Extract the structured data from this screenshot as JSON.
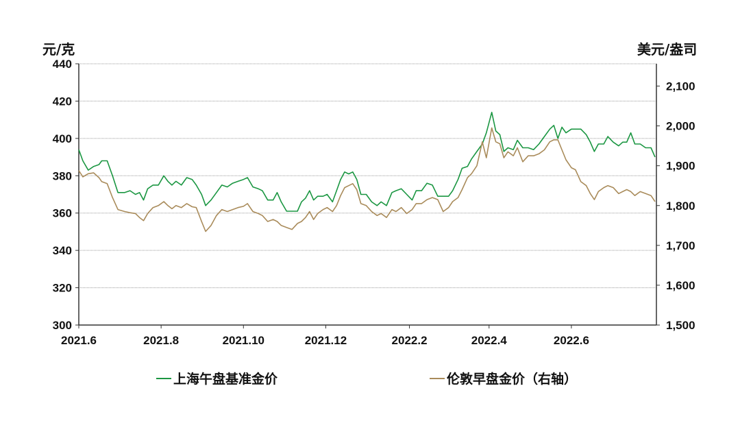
{
  "chart_data": {
    "type": "line",
    "title": "",
    "left_axis": {
      "label": "元/克",
      "ticks": [
        300,
        320,
        340,
        360,
        380,
        400,
        420,
        440
      ],
      "ylim": [
        300,
        440
      ]
    },
    "right_axis": {
      "label": "美元/盎司",
      "ticks": [
        "1,500",
        "1,600",
        "1,700",
        "1,800",
        "1,900",
        "2,000",
        "2,100"
      ],
      "tick_values": [
        1500,
        1600,
        1700,
        1800,
        1900,
        2000,
        2100
      ],
      "ylim": [
        1500,
        2156
      ]
    },
    "x_axis": {
      "tick_labels": [
        "2021.6",
        "2021.8",
        "2021.10",
        "2021.12",
        "2022.2",
        "2022.4",
        "2022.6"
      ],
      "range": [
        "2021.6",
        "2022.7"
      ]
    },
    "grid": true,
    "legend_position": "bottom",
    "series": [
      {
        "name": "上海午盘基准金价",
        "axis": "left",
        "color": "#1a9641",
        "points": [
          [
            "2021-06-01",
            394
          ],
          [
            "2021-06-04",
            388
          ],
          [
            "2021-06-08",
            383
          ],
          [
            "2021-06-12",
            385
          ],
          [
            "2021-06-16",
            386
          ],
          [
            "2021-06-18",
            388
          ],
          [
            "2021-06-22",
            388
          ],
          [
            "2021-06-26",
            380
          ],
          [
            "2021-06-30",
            371
          ],
          [
            "2021-07-05",
            371
          ],
          [
            "2021-07-09",
            372
          ],
          [
            "2021-07-13",
            370
          ],
          [
            "2021-07-16",
            371
          ],
          [
            "2021-07-19",
            367
          ],
          [
            "2021-07-22",
            373
          ],
          [
            "2021-07-26",
            375
          ],
          [
            "2021-07-30",
            375
          ],
          [
            "2021-08-03",
            380
          ],
          [
            "2021-08-06",
            377
          ],
          [
            "2021-08-09",
            375
          ],
          [
            "2021-08-12",
            377
          ],
          [
            "2021-08-16",
            375
          ],
          [
            "2021-08-20",
            379
          ],
          [
            "2021-08-24",
            378
          ],
          [
            "2021-08-27",
            375
          ],
          [
            "2021-08-31",
            370
          ],
          [
            "2021-09-03",
            364
          ],
          [
            "2021-09-07",
            367
          ],
          [
            "2021-09-11",
            371
          ],
          [
            "2021-09-15",
            375
          ],
          [
            "2021-09-19",
            374
          ],
          [
            "2021-09-23",
            376
          ],
          [
            "2021-09-27",
            377
          ],
          [
            "2021-10-01",
            378
          ],
          [
            "2021-10-04",
            379
          ],
          [
            "2021-10-08",
            374
          ],
          [
            "2021-10-12",
            373
          ],
          [
            "2021-10-15",
            372
          ],
          [
            "2021-10-19",
            367
          ],
          [
            "2021-10-23",
            367
          ],
          [
            "2021-10-26",
            371
          ],
          [
            "2021-10-29",
            366
          ],
          [
            "2021-11-02",
            361
          ],
          [
            "2021-11-06",
            361
          ],
          [
            "2021-11-10",
            361
          ],
          [
            "2021-11-13",
            366
          ],
          [
            "2021-11-16",
            368
          ],
          [
            "2021-11-19",
            372
          ],
          [
            "2021-11-22",
            367
          ],
          [
            "2021-11-25",
            369
          ],
          [
            "2021-11-29",
            369
          ],
          [
            "2021-12-02",
            370
          ],
          [
            "2021-12-06",
            366
          ],
          [
            "2021-12-09",
            372
          ],
          [
            "2021-12-12",
            378
          ],
          [
            "2021-12-15",
            382
          ],
          [
            "2021-12-18",
            381
          ],
          [
            "2021-12-21",
            382
          ],
          [
            "2021-12-24",
            378
          ],
          [
            "2021-12-27",
            370
          ],
          [
            "2021-12-31",
            370
          ],
          [
            "2022-01-04",
            366
          ],
          [
            "2022-01-08",
            364
          ],
          [
            "2022-01-11",
            366
          ],
          [
            "2022-01-15",
            364
          ],
          [
            "2022-01-19",
            371
          ],
          [
            "2022-01-22",
            372
          ],
          [
            "2022-01-26",
            373
          ],
          [
            "2022-01-30",
            370
          ],
          [
            "2022-02-03",
            367
          ],
          [
            "2022-02-06",
            372
          ],
          [
            "2022-02-10",
            372
          ],
          [
            "2022-02-14",
            376
          ],
          [
            "2022-02-18",
            375
          ],
          [
            "2022-02-22",
            369
          ],
          [
            "2022-02-26",
            369
          ],
          [
            "2022-03-02",
            369
          ],
          [
            "2022-03-05",
            372
          ],
          [
            "2022-03-09",
            378
          ],
          [
            "2022-03-12",
            384
          ],
          [
            "2022-03-16",
            385
          ],
          [
            "2022-03-19",
            389
          ],
          [
            "2022-03-23",
            393
          ],
          [
            "2022-03-27",
            397
          ],
          [
            "2022-03-30",
            403
          ],
          [
            "2022-04-03",
            414
          ],
          [
            "2022-04-06",
            404
          ],
          [
            "2022-04-09",
            402
          ],
          [
            "2022-04-12",
            393
          ],
          [
            "2022-04-15",
            395
          ],
          [
            "2022-04-19",
            394
          ],
          [
            "2022-04-22",
            399
          ],
          [
            "2022-04-26",
            395
          ],
          [
            "2022-04-30",
            395
          ],
          [
            "2022-05-04",
            394
          ],
          [
            "2022-05-08",
            397
          ],
          [
            "2022-05-12",
            401
          ],
          [
            "2022-05-16",
            405
          ],
          [
            "2022-05-19",
            407
          ],
          [
            "2022-05-22",
            400
          ],
          [
            "2022-05-25",
            406
          ],
          [
            "2022-05-28",
            403
          ],
          [
            "2022-06-01",
            405
          ],
          [
            "2022-06-04",
            405
          ],
          [
            "2022-06-08",
            405
          ],
          [
            "2022-06-12",
            402
          ],
          [
            "2022-06-15",
            398
          ],
          [
            "2022-06-18",
            393
          ],
          [
            "2022-06-21",
            397
          ],
          [
            "2022-06-25",
            397
          ],
          [
            "2022-06-28",
            401
          ],
          [
            "2022-07-02",
            398
          ],
          [
            "2022-07-06",
            396
          ],
          [
            "2022-07-09",
            398
          ],
          [
            "2022-07-12",
            398
          ],
          [
            "2022-07-15",
            403
          ],
          [
            "2022-07-18",
            397
          ],
          [
            "2022-07-22",
            397
          ],
          [
            "2022-07-26",
            395
          ],
          [
            "2022-07-30",
            395
          ],
          [
            "2022-08-02",
            390
          ]
        ]
      },
      {
        "name": "伦敦早盘金价（右轴）",
        "axis": "right",
        "color": "#a98b5a",
        "points": [
          [
            "2021-06-01",
            1888
          ],
          [
            "2021-06-04",
            1872
          ],
          [
            "2021-06-08",
            1880
          ],
          [
            "2021-06-12",
            1882
          ],
          [
            "2021-06-16",
            1870
          ],
          [
            "2021-06-18",
            1860
          ],
          [
            "2021-06-22",
            1855
          ],
          [
            "2021-06-26",
            1820
          ],
          [
            "2021-06-30",
            1790
          ],
          [
            "2021-07-05",
            1785
          ],
          [
            "2021-07-09",
            1782
          ],
          [
            "2021-07-13",
            1780
          ],
          [
            "2021-07-16",
            1770
          ],
          [
            "2021-07-19",
            1762
          ],
          [
            "2021-07-22",
            1780
          ],
          [
            "2021-07-26",
            1795
          ],
          [
            "2021-07-30",
            1800
          ],
          [
            "2021-08-03",
            1810
          ],
          [
            "2021-08-06",
            1800
          ],
          [
            "2021-08-09",
            1792
          ],
          [
            "2021-08-12",
            1800
          ],
          [
            "2021-08-16",
            1795
          ],
          [
            "2021-08-20",
            1805
          ],
          [
            "2021-08-24",
            1797
          ],
          [
            "2021-08-27",
            1795
          ],
          [
            "2021-08-31",
            1760
          ],
          [
            "2021-09-03",
            1735
          ],
          [
            "2021-09-07",
            1750
          ],
          [
            "2021-09-11",
            1775
          ],
          [
            "2021-09-15",
            1790
          ],
          [
            "2021-09-19",
            1785
          ],
          [
            "2021-09-23",
            1790
          ],
          [
            "2021-09-27",
            1795
          ],
          [
            "2021-10-01",
            1798
          ],
          [
            "2021-10-04",
            1805
          ],
          [
            "2021-10-08",
            1785
          ],
          [
            "2021-10-12",
            1780
          ],
          [
            "2021-10-15",
            1775
          ],
          [
            "2021-10-19",
            1760
          ],
          [
            "2021-10-23",
            1765
          ],
          [
            "2021-10-26",
            1760
          ],
          [
            "2021-10-29",
            1750
          ],
          [
            "2021-11-02",
            1745
          ],
          [
            "2021-11-06",
            1740
          ],
          [
            "2021-11-10",
            1755
          ],
          [
            "2021-11-13",
            1760
          ],
          [
            "2021-11-16",
            1770
          ],
          [
            "2021-11-19",
            1785
          ],
          [
            "2021-11-22",
            1765
          ],
          [
            "2021-11-25",
            1780
          ],
          [
            "2021-11-29",
            1790
          ],
          [
            "2021-12-02",
            1795
          ],
          [
            "2021-12-06",
            1785
          ],
          [
            "2021-12-09",
            1800
          ],
          [
            "2021-12-12",
            1825
          ],
          [
            "2021-12-15",
            1845
          ],
          [
            "2021-12-18",
            1850
          ],
          [
            "2021-12-21",
            1855
          ],
          [
            "2021-12-24",
            1840
          ],
          [
            "2021-12-27",
            1805
          ],
          [
            "2021-12-31",
            1800
          ],
          [
            "2022-01-04",
            1785
          ],
          [
            "2022-01-08",
            1775
          ],
          [
            "2022-01-11",
            1780
          ],
          [
            "2022-01-15",
            1770
          ],
          [
            "2022-01-19",
            1790
          ],
          [
            "2022-01-22",
            1785
          ],
          [
            "2022-01-26",
            1795
          ],
          [
            "2022-01-30",
            1780
          ],
          [
            "2022-02-03",
            1790
          ],
          [
            "2022-02-06",
            1805
          ],
          [
            "2022-02-10",
            1805
          ],
          [
            "2022-02-14",
            1815
          ],
          [
            "2022-02-18",
            1820
          ],
          [
            "2022-02-22",
            1815
          ],
          [
            "2022-02-26",
            1785
          ],
          [
            "2022-03-02",
            1795
          ],
          [
            "2022-03-05",
            1810
          ],
          [
            "2022-03-09",
            1820
          ],
          [
            "2022-03-12",
            1840
          ],
          [
            "2022-03-16",
            1870
          ],
          [
            "2022-03-19",
            1880
          ],
          [
            "2022-03-23",
            1900
          ],
          [
            "2022-03-27",
            1960
          ],
          [
            "2022-03-30",
            1920
          ],
          [
            "2022-04-03",
            1995
          ],
          [
            "2022-04-06",
            1960
          ],
          [
            "2022-04-09",
            1955
          ],
          [
            "2022-04-12",
            1920
          ],
          [
            "2022-04-15",
            1935
          ],
          [
            "2022-04-19",
            1925
          ],
          [
            "2022-04-22",
            1945
          ],
          [
            "2022-04-26",
            1910
          ],
          [
            "2022-04-30",
            1925
          ],
          [
            "2022-05-04",
            1925
          ],
          [
            "2022-05-08",
            1930
          ],
          [
            "2022-05-12",
            1940
          ],
          [
            "2022-05-16",
            1960
          ],
          [
            "2022-05-19",
            1965
          ],
          [
            "2022-05-22",
            1965
          ],
          [
            "2022-05-25",
            1940
          ],
          [
            "2022-05-28",
            1915
          ],
          [
            "2022-06-01",
            1895
          ],
          [
            "2022-06-04",
            1890
          ],
          [
            "2022-06-08",
            1860
          ],
          [
            "2022-06-12",
            1850
          ],
          [
            "2022-06-15",
            1830
          ],
          [
            "2022-06-18",
            1815
          ],
          [
            "2022-06-21",
            1835
          ],
          [
            "2022-06-25",
            1845
          ],
          [
            "2022-06-28",
            1850
          ],
          [
            "2022-07-02",
            1845
          ],
          [
            "2022-07-06",
            1830
          ],
          [
            "2022-07-09",
            1835
          ],
          [
            "2022-07-12",
            1840
          ],
          [
            "2022-07-15",
            1835
          ],
          [
            "2022-07-18",
            1825
          ],
          [
            "2022-07-22",
            1835
          ],
          [
            "2022-07-26",
            1830
          ],
          [
            "2022-07-30",
            1825
          ],
          [
            "2022-08-02",
            1810
          ]
        ]
      }
    ]
  },
  "legend": {
    "items": [
      {
        "label": "上海午盘基准金价",
        "color": "#1a9641"
      },
      {
        "label": "伦敦早盘金价（右轴）",
        "color": "#a98b5a"
      }
    ]
  }
}
